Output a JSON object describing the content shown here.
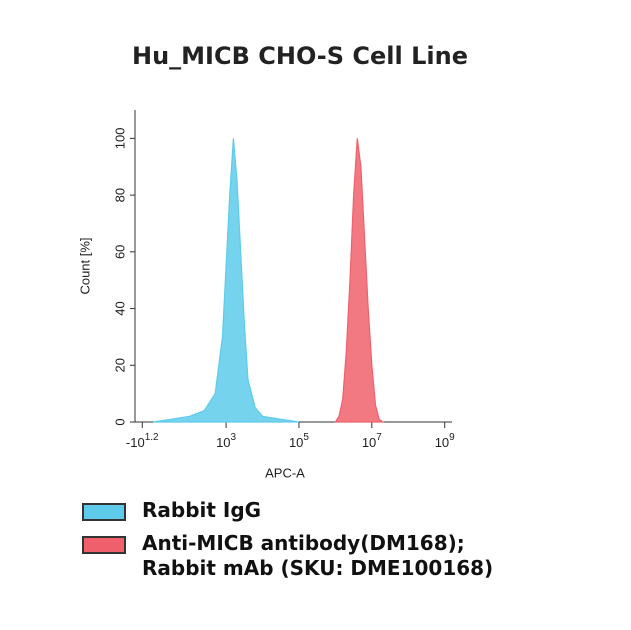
{
  "chart_data": {
    "type": "area",
    "title": "Hu_MICB CHO-S Cell Line",
    "x_label": "APC-A",
    "y_label": "Count [%]",
    "xlim": [
      0.5,
      9.2
    ],
    "ylim": [
      0,
      110
    ],
    "xticks": [
      {
        "value": 0.7,
        "label": "-10",
        "exponent": "1.2"
      },
      {
        "value": 3,
        "label": "10",
        "exponent": "3"
      },
      {
        "value": 5,
        "label": "10",
        "exponent": "5"
      },
      {
        "value": 7,
        "label": "10",
        "exponent": "7"
      },
      {
        "value": 9,
        "label": "10",
        "exponent": "9"
      }
    ],
    "yticks": [
      0,
      20,
      40,
      60,
      80,
      100
    ],
    "series": [
      {
        "name": "Rabbit IgG",
        "color": "#5ecbea",
        "x": [
          1.0,
          1.5,
          2.0,
          2.4,
          2.7,
          2.9,
          3.0,
          3.1,
          3.2,
          3.3,
          3.4,
          3.5,
          3.6,
          3.8,
          4.0,
          4.5,
          5.0
        ],
        "values": [
          0,
          1,
          2,
          4,
          10,
          30,
          55,
          80,
          100,
          85,
          60,
          35,
          15,
          5,
          2,
          1,
          0
        ]
      },
      {
        "name": "Anti-MICB antibody(DM168); Rabbit mAb (SKU: DME100168)",
        "color": "#f0606c",
        "x": [
          6.0,
          6.1,
          6.2,
          6.3,
          6.4,
          6.5,
          6.6,
          6.7,
          6.8,
          6.9,
          7.0,
          7.1,
          7.2,
          7.3
        ],
        "values": [
          0,
          2,
          8,
          25,
          50,
          80,
          100,
          90,
          65,
          40,
          20,
          6,
          1,
          0
        ]
      }
    ]
  }
}
